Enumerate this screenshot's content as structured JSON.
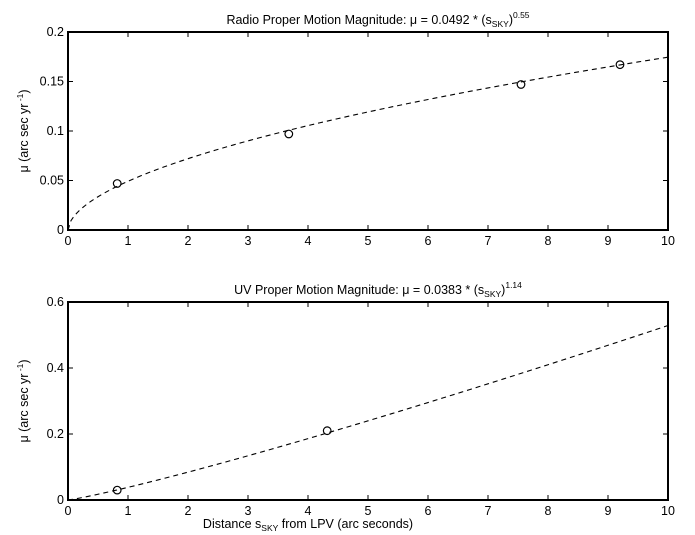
{
  "chart_data": [
    {
      "type": "scatter",
      "title": {
        "prefix": "Radio Proper Motion Magnitude: μ = 0.0492 * (s",
        "sub": "SKY",
        "close": ")",
        "exp": "0.55"
      },
      "ylabel": {
        "prefix": "μ (arc sec yr",
        "exp": " -1",
        "close": ")"
      },
      "xlabel": null,
      "xlim": [
        0,
        10
      ],
      "ylim": [
        0,
        0.2
      ],
      "xticks": [
        0,
        1,
        2,
        3,
        4,
        5,
        6,
        7,
        8,
        9,
        10
      ],
      "yticks": [
        0,
        0.05,
        0.1,
        0.15,
        0.2
      ],
      "ytick_labels": [
        "0",
        "0.05",
        "0.1",
        "0.15",
        "0.2"
      ],
      "series": [
        {
          "x": [
            0.82,
            3.68,
            7.55,
            9.2
          ],
          "y": [
            0.047,
            0.097,
            0.147,
            0.167
          ]
        }
      ],
      "fit": {
        "a": 0.0492,
        "b": 0.55,
        "style": "dashed"
      },
      "grid": false
    },
    {
      "type": "scatter",
      "title": {
        "prefix": "UV Proper Motion Magnitude: μ = 0.0383 * (s",
        "sub": "SKY",
        "close": ")",
        "exp": "1.14"
      },
      "ylabel": {
        "prefix": "μ (arc sec yr",
        "exp": " -1",
        "close": ")"
      },
      "xlabel": {
        "prefix": "Distance s",
        "sub": "SKY",
        "suffix": " from LPV (arc seconds)"
      },
      "xlim": [
        0,
        10
      ],
      "ylim": [
        0,
        0.6
      ],
      "xticks": [
        0,
        1,
        2,
        3,
        4,
        5,
        6,
        7,
        8,
        9,
        10
      ],
      "yticks": [
        0,
        0.2,
        0.4,
        0.6
      ],
      "ytick_labels": [
        "0",
        "0.2",
        "0.4",
        "0.6"
      ],
      "series": [
        {
          "x": [
            0.82,
            4.32
          ],
          "y": [
            0.03,
            0.21
          ]
        }
      ],
      "fit": {
        "a": 0.0383,
        "b": 1.14,
        "style": "dashed"
      },
      "grid": false
    }
  ]
}
